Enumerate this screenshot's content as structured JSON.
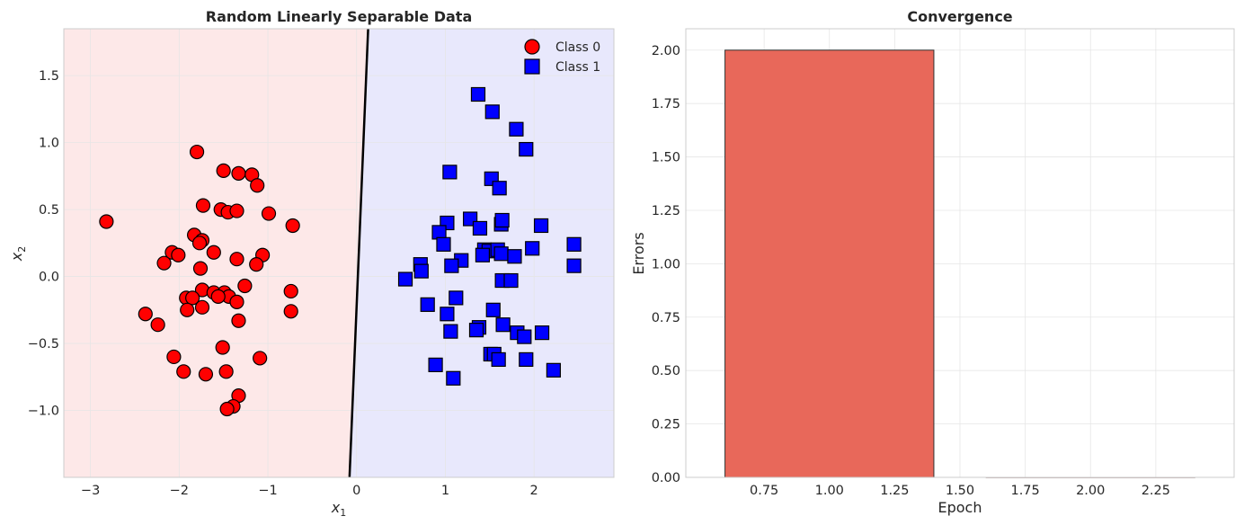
{
  "chart_data": [
    {
      "type": "scatter",
      "title": "Random Linearly Separable Data",
      "xlabel": "x",
      "xlabel_sub": "1",
      "ylabel": "x",
      "ylabel_sub": "2",
      "xlim": [
        -3.3,
        2.9
      ],
      "ylim": [
        -1.5,
        1.85
      ],
      "xticks": [
        -3,
        -2,
        -1,
        0,
        1,
        2
      ],
      "xtick_labels": [
        "−3",
        "−2",
        "−1",
        "0",
        "1",
        "2"
      ],
      "yticks": [
        -1.0,
        -0.5,
        0.0,
        0.5,
        1.0,
        1.5
      ],
      "ytick_labels": [
        "−1.0",
        "−0.5",
        "0.0",
        "0.5",
        "1.0",
        "1.5"
      ],
      "grid": true,
      "legend_position": "top-right",
      "decision_boundary": {
        "x": [
          -0.08,
          0.13
        ],
        "y": [
          -1.5,
          1.85
        ]
      },
      "region_colors": {
        "class0": "#fde8e8",
        "class1": "#e8e8fc"
      },
      "series": [
        {
          "name": "Class 0",
          "marker": "circle",
          "color": "#ff0000",
          "points": [
            [
              -2.82,
              0.41
            ],
            [
              -1.8,
              0.93
            ],
            [
              -1.5,
              0.79
            ],
            [
              -1.33,
              0.77
            ],
            [
              -1.18,
              0.76
            ],
            [
              -1.12,
              0.68
            ],
            [
              -1.73,
              0.53
            ],
            [
              -1.53,
              0.5
            ],
            [
              -1.45,
              0.48
            ],
            [
              -1.35,
              0.49
            ],
            [
              -0.99,
              0.47
            ],
            [
              -0.72,
              0.38
            ],
            [
              -2.08,
              0.18
            ],
            [
              -2.01,
              0.16
            ],
            [
              -2.17,
              0.1
            ],
            [
              -1.83,
              0.31
            ],
            [
              -1.74,
              0.27
            ],
            [
              -1.77,
              0.25
            ],
            [
              -1.61,
              0.18
            ],
            [
              -1.35,
              0.13
            ],
            [
              -1.06,
              0.16
            ],
            [
              -1.13,
              0.09
            ],
            [
              -1.76,
              0.06
            ],
            [
              -1.26,
              -0.07
            ],
            [
              -1.74,
              -0.1
            ],
            [
              -1.61,
              -0.12
            ],
            [
              -1.49,
              -0.12
            ],
            [
              -1.44,
              -0.15
            ],
            [
              -1.56,
              -0.15
            ],
            [
              -1.35,
              -0.19
            ],
            [
              -0.74,
              -0.11
            ],
            [
              -1.92,
              -0.16
            ],
            [
              -1.85,
              -0.16
            ],
            [
              -1.74,
              -0.23
            ],
            [
              -1.91,
              -0.25
            ],
            [
              -0.74,
              -0.26
            ],
            [
              -2.38,
              -0.28
            ],
            [
              -2.24,
              -0.36
            ],
            [
              -1.33,
              -0.33
            ],
            [
              -1.51,
              -0.53
            ],
            [
              -2.06,
              -0.6
            ],
            [
              -1.09,
              -0.61
            ],
            [
              -1.95,
              -0.71
            ],
            [
              -1.7,
              -0.73
            ],
            [
              -1.47,
              -0.71
            ],
            [
              -1.33,
              -0.89
            ],
            [
              -1.39,
              -0.97
            ],
            [
              -1.46,
              -0.99
            ]
          ]
        },
        {
          "name": "Class 1",
          "marker": "square",
          "color": "#0000ff",
          "points": [
            [
              1.37,
              1.36
            ],
            [
              1.53,
              1.23
            ],
            [
              1.8,
              1.1
            ],
            [
              1.91,
              0.95
            ],
            [
              1.05,
              0.78
            ],
            [
              1.52,
              0.73
            ],
            [
              1.61,
              0.66
            ],
            [
              1.28,
              0.43
            ],
            [
              1.02,
              0.4
            ],
            [
              1.39,
              0.36
            ],
            [
              1.63,
              0.39
            ],
            [
              1.64,
              0.42
            ],
            [
              2.08,
              0.38
            ],
            [
              0.93,
              0.33
            ],
            [
              0.98,
              0.24
            ],
            [
              2.45,
              0.24
            ],
            [
              1.98,
              0.21
            ],
            [
              1.44,
              0.2
            ],
            [
              1.49,
              0.19
            ],
            [
              1.59,
              0.2
            ],
            [
              1.42,
              0.16
            ],
            [
              1.63,
              0.17
            ],
            [
              1.78,
              0.15
            ],
            [
              1.18,
              0.12
            ],
            [
              0.72,
              0.09
            ],
            [
              1.07,
              0.08
            ],
            [
              2.45,
              0.08
            ],
            [
              0.73,
              0.04
            ],
            [
              0.55,
              -0.02
            ],
            [
              1.64,
              -0.03
            ],
            [
              1.74,
              -0.03
            ],
            [
              1.12,
              -0.16
            ],
            [
              0.8,
              -0.21
            ],
            [
              1.54,
              -0.25
            ],
            [
              1.02,
              -0.28
            ],
            [
              1.65,
              -0.36
            ],
            [
              1.38,
              -0.38
            ],
            [
              1.35,
              -0.4
            ],
            [
              1.06,
              -0.41
            ],
            [
              1.81,
              -0.42
            ],
            [
              2.09,
              -0.42
            ],
            [
              1.89,
              -0.45
            ],
            [
              1.51,
              -0.58
            ],
            [
              1.55,
              -0.58
            ],
            [
              1.6,
              -0.62
            ],
            [
              1.91,
              -0.62
            ],
            [
              0.89,
              -0.66
            ],
            [
              2.22,
              -0.7
            ],
            [
              1.09,
              -0.76
            ]
          ]
        }
      ]
    },
    {
      "type": "bar",
      "title": "Convergence",
      "xlabel": "Epoch",
      "ylabel": "Errors",
      "xlim": [
        0.45,
        2.55
      ],
      "ylim": [
        0,
        2.1
      ],
      "xticks": [
        0.75,
        1.0,
        1.25,
        1.5,
        1.75,
        2.0,
        2.25
      ],
      "xtick_labels": [
        "0.75",
        "1.00",
        "1.25",
        "1.50",
        "1.75",
        "2.00",
        "2.25"
      ],
      "yticks": [
        0.0,
        0.25,
        0.5,
        0.75,
        1.0,
        1.25,
        1.5,
        1.75,
        2.0
      ],
      "ytick_labels": [
        "0.00",
        "0.25",
        "0.50",
        "0.75",
        "1.00",
        "1.25",
        "1.50",
        "1.75",
        "2.00"
      ],
      "grid": true,
      "bar_width": 0.8,
      "bar_color": "#e8685a",
      "categories": [
        1,
        2
      ],
      "values": [
        2,
        0
      ]
    }
  ]
}
